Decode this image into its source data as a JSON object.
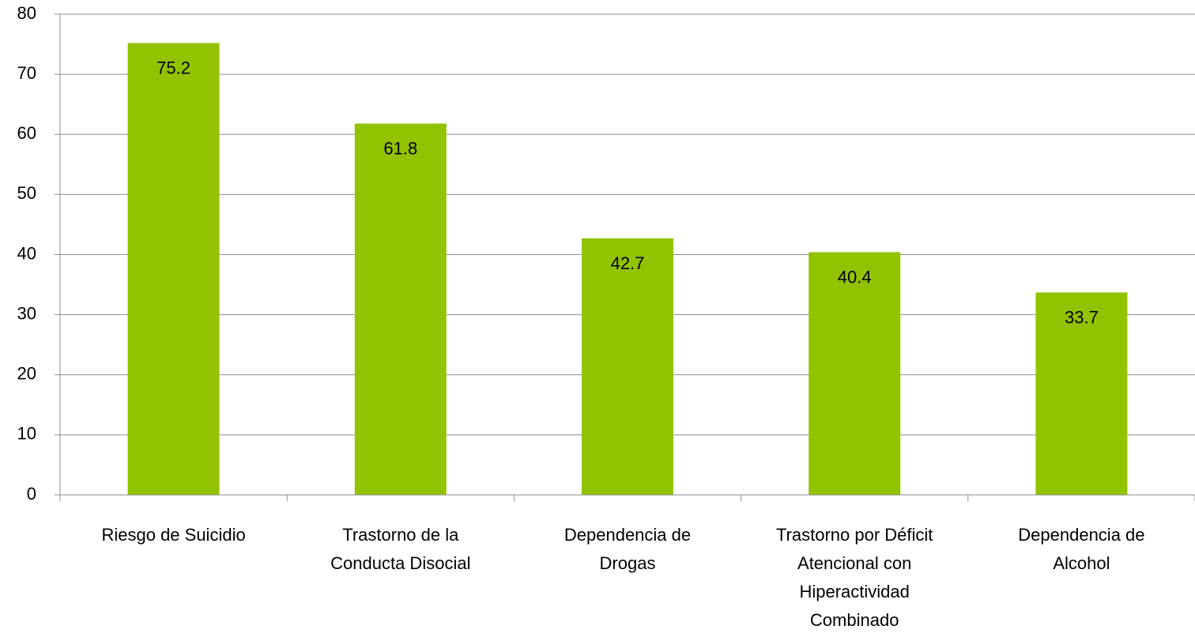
{
  "chart_data": {
    "type": "bar",
    "categories": [
      "Riesgo de Suicidio",
      "Trastorno de la Conducta Disocial",
      "Dependencia de Drogas",
      "Trastorno por Déficit Atencional con Hiperactividad Combinado",
      "Dependencia de Alcohol"
    ],
    "values": [
      75.2,
      61.8,
      42.7,
      40.4,
      33.7
    ],
    "color": "#92c300",
    "ylim": [
      0,
      80
    ],
    "yticks": [
      0,
      10,
      20,
      30,
      40,
      50,
      60,
      70,
      80
    ],
    "grid": true
  }
}
